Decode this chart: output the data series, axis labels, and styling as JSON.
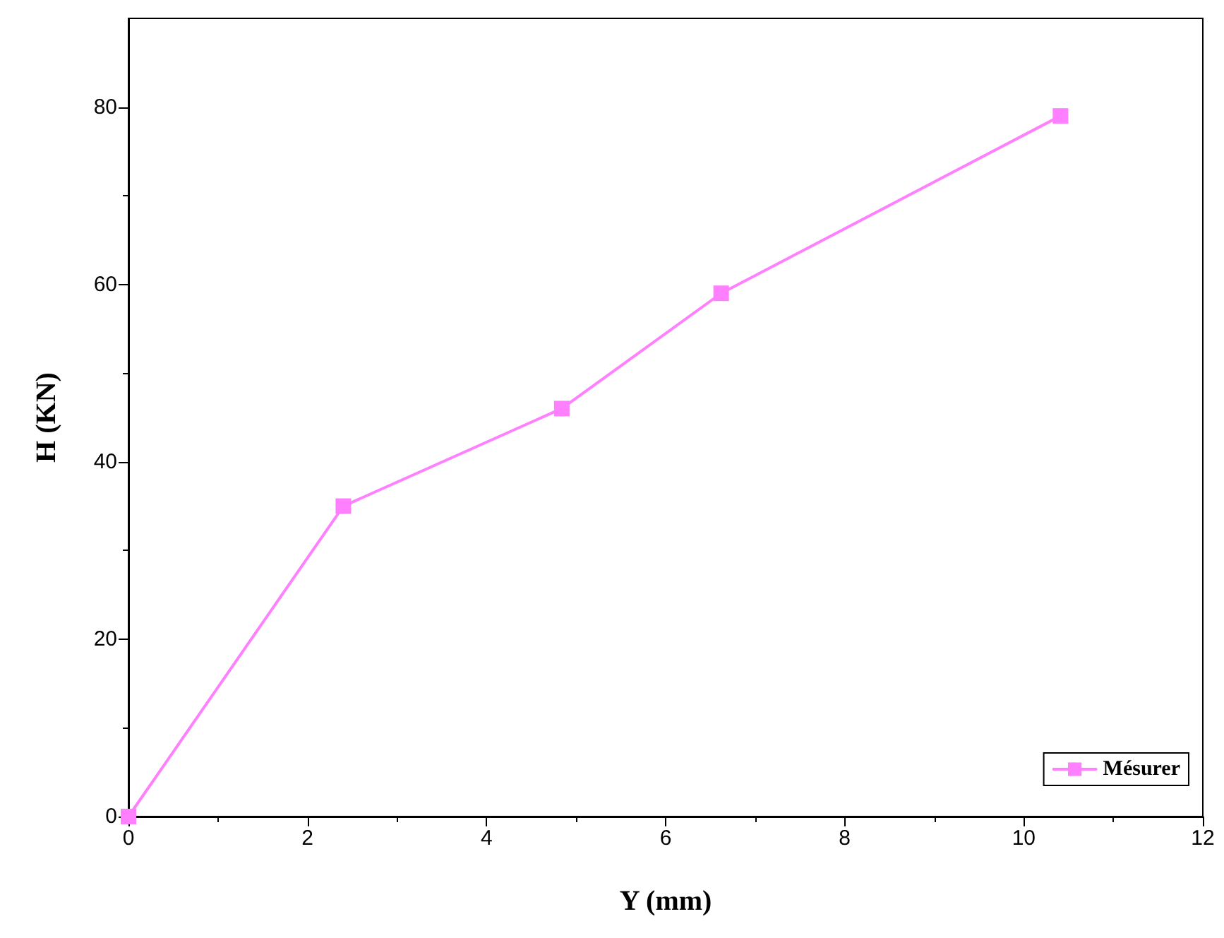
{
  "chart_data": {
    "type": "line",
    "xlabel": "Y (mm)",
    "ylabel": "H (KN)",
    "x": [
      0,
      2.4,
      4.84,
      6.62,
      10.41
    ],
    "series": [
      {
        "name": "Mésurer",
        "color": "#ff80ff",
        "values": [
          0,
          35,
          46,
          59,
          79
        ]
      }
    ],
    "xlim": [
      0,
      12
    ],
    "xticks": [
      0,
      2,
      4,
      6,
      8,
      10,
      12
    ],
    "ylim": [
      0,
      90
    ],
    "yticks": [
      0,
      20,
      40,
      60,
      80
    ],
    "marker": "square",
    "line_style": "solid",
    "grid": false,
    "legend": "bottom right"
  }
}
